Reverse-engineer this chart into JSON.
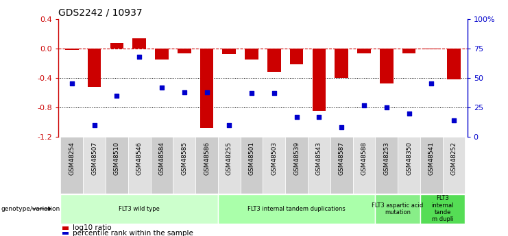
{
  "title": "GDS2242 / 10937",
  "samples": [
    "GSM48254",
    "GSM48507",
    "GSM48510",
    "GSM48546",
    "GSM48584",
    "GSM48585",
    "GSM48586",
    "GSM48255",
    "GSM48501",
    "GSM48503",
    "GSM48539",
    "GSM48543",
    "GSM48587",
    "GSM48588",
    "GSM48253",
    "GSM48350",
    "GSM48541",
    "GSM48252"
  ],
  "log10_ratio": [
    -0.02,
    -0.52,
    0.07,
    0.14,
    -0.15,
    -0.07,
    -1.08,
    -0.08,
    -0.15,
    -0.32,
    -0.22,
    -0.85,
    -0.4,
    -0.07,
    -0.48,
    -0.07,
    -0.01,
    -0.42
  ],
  "percentile_rank": [
    45,
    10,
    35,
    68,
    42,
    38,
    38,
    10,
    37,
    37,
    17,
    17,
    8,
    27,
    25,
    20,
    45,
    14
  ],
  "bar_color": "#cc0000",
  "dot_color": "#0000cc",
  "groups": [
    {
      "label": "FLT3 wild type",
      "start": 0,
      "end": 7,
      "color": "#ccffcc"
    },
    {
      "label": "FLT3 internal tandem duplications",
      "start": 7,
      "end": 14,
      "color": "#aaffaa"
    },
    {
      "label": "FLT3 aspartic acid\nmutation",
      "start": 14,
      "end": 16,
      "color": "#88ee88"
    },
    {
      "label": "FLT3\ninternal\ntande\nm dupli",
      "start": 16,
      "end": 18,
      "color": "#55dd55"
    }
  ],
  "ylim_left": [
    -1.2,
    0.4
  ],
  "ylim_right": [
    0,
    100
  ],
  "yticks_left": [
    -1.2,
    -0.8,
    -0.4,
    0.0,
    0.4
  ],
  "yticks_right": [
    0,
    25,
    50,
    75,
    100
  ],
  "ytick_right_labels": [
    "0",
    "25",
    "50",
    "75",
    "100%"
  ],
  "hline_y": 0.0,
  "dotted_lines": [
    -0.4,
    -0.8
  ],
  "legend_items": [
    {
      "label": "log10 ratio",
      "color": "#cc0000"
    },
    {
      "label": "percentile rank within the sample",
      "color": "#0000cc"
    }
  ]
}
